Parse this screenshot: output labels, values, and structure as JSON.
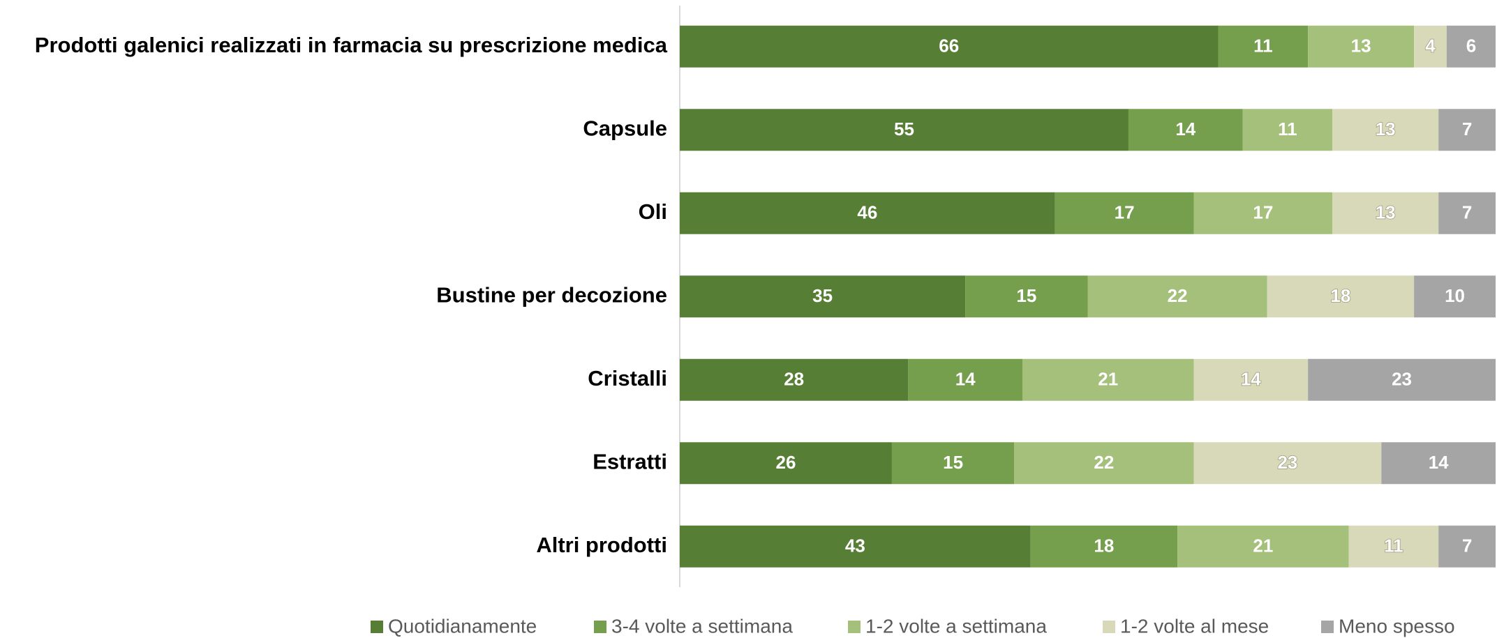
{
  "chart_data": {
    "type": "stacked-bar-horizontal",
    "categories": [
      "Prodotti galenici realizzati in farmacia su prescrizione medica",
      "Capsule",
      "Oli",
      "Bustine per decozione",
      "Cristalli",
      "Estratti",
      "Altri prodotti"
    ],
    "xlim": [
      0,
      100
    ],
    "legend": "bottom",
    "series": [
      {
        "name": "Quotidianamente",
        "color": "#567f35",
        "values": [
          66,
          55,
          46,
          35,
          28,
          26,
          43
        ]
      },
      {
        "name": "3-4 volte a settimana",
        "color": "#759f4d",
        "values": [
          11,
          14,
          17,
          15,
          14,
          15,
          18
        ]
      },
      {
        "name": "1-2 volte a settimana",
        "color": "#a4c07a",
        "values": [
          13,
          11,
          17,
          22,
          21,
          22,
          21
        ]
      },
      {
        "name": "1-2 volte al mese",
        "color": "#d7d9b8",
        "values": [
          4,
          13,
          13,
          18,
          14,
          23,
          11
        ]
      },
      {
        "name": "Meno spesso",
        "color": "#a5a5a5",
        "values": [
          6,
          7,
          7,
          10,
          23,
          14,
          7
        ]
      }
    ]
  }
}
